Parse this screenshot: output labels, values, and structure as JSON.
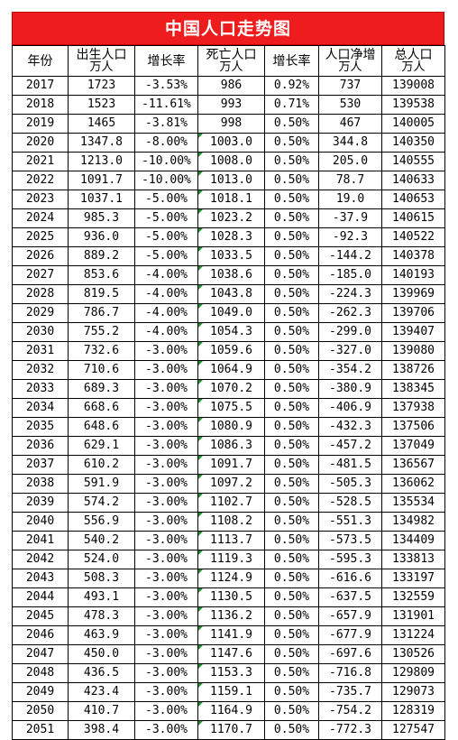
{
  "title": "中国人口走势图",
  "columns": [
    {
      "key": "year",
      "line1": "年份",
      "line2": ""
    },
    {
      "key": "births",
      "line1": "出生人口",
      "line2": "万人"
    },
    {
      "key": "birth_rate",
      "line1": "增长率",
      "line2": ""
    },
    {
      "key": "deaths",
      "line1": "死亡人口",
      "line2": "万人"
    },
    {
      "key": "death_rate",
      "line1": "增长率",
      "line2": ""
    },
    {
      "key": "net",
      "line1": "人口净增",
      "line2": "万人"
    },
    {
      "key": "total",
      "line1": "总人口",
      "line2": "万人"
    }
  ],
  "rows": [
    [
      "2017",
      "1723",
      "-3.53%",
      "986",
      "0.92%",
      "737",
      "139008"
    ],
    [
      "2018",
      "1523",
      "-11.61%",
      "993",
      "0.71%",
      "530",
      "139538"
    ],
    [
      "2019",
      "1465",
      "-3.81%",
      "998",
      "0.50%",
      "467",
      "140005"
    ],
    [
      "2020",
      "1347.8",
      "-8.00%",
      "1003.0",
      "0.50%",
      "344.8",
      "140350"
    ],
    [
      "2021",
      "1213.0",
      "-10.00%",
      "1008.0",
      "0.50%",
      "205.0",
      "140555"
    ],
    [
      "2022",
      "1091.7",
      "-10.00%",
      "1013.0",
      "0.50%",
      "78.7",
      "140633"
    ],
    [
      "2023",
      "1037.1",
      "-5.00%",
      "1018.1",
      "0.50%",
      "19.0",
      "140653"
    ],
    [
      "2024",
      "985.3",
      "-5.00%",
      "1023.2",
      "0.50%",
      "-37.9",
      "140615"
    ],
    [
      "2025",
      "936.0",
      "-5.00%",
      "1028.3",
      "0.50%",
      "-92.3",
      "140522"
    ],
    [
      "2026",
      "889.2",
      "-5.00%",
      "1033.5",
      "0.50%",
      "-144.2",
      "140378"
    ],
    [
      "2027",
      "853.6",
      "-4.00%",
      "1038.6",
      "0.50%",
      "-185.0",
      "140193"
    ],
    [
      "2028",
      "819.5",
      "-4.00%",
      "1043.8",
      "0.50%",
      "-224.3",
      "139969"
    ],
    [
      "2029",
      "786.7",
      "-4.00%",
      "1049.0",
      "0.50%",
      "-262.3",
      "139706"
    ],
    [
      "2030",
      "755.2",
      "-4.00%",
      "1054.3",
      "0.50%",
      "-299.0",
      "139407"
    ],
    [
      "2031",
      "732.6",
      "-3.00%",
      "1059.6",
      "0.50%",
      "-327.0",
      "139080"
    ],
    [
      "2032",
      "710.6",
      "-3.00%",
      "1064.9",
      "0.50%",
      "-354.2",
      "138726"
    ],
    [
      "2033",
      "689.3",
      "-3.00%",
      "1070.2",
      "0.50%",
      "-380.9",
      "138345"
    ],
    [
      "2034",
      "668.6",
      "-3.00%",
      "1075.5",
      "0.50%",
      "-406.9",
      "137938"
    ],
    [
      "2035",
      "648.6",
      "-3.00%",
      "1080.9",
      "0.50%",
      "-432.3",
      "137506"
    ],
    [
      "2036",
      "629.1",
      "-3.00%",
      "1086.3",
      "0.50%",
      "-457.2",
      "137049"
    ],
    [
      "2037",
      "610.2",
      "-3.00%",
      "1091.7",
      "0.50%",
      "-481.5",
      "136567"
    ],
    [
      "2038",
      "591.9",
      "-3.00%",
      "1097.2",
      "0.50%",
      "-505.3",
      "136062"
    ],
    [
      "2039",
      "574.2",
      "-3.00%",
      "1102.7",
      "0.50%",
      "-528.5",
      "135534"
    ],
    [
      "2040",
      "556.9",
      "-3.00%",
      "1108.2",
      "0.50%",
      "-551.3",
      "134982"
    ],
    [
      "2041",
      "540.2",
      "-3.00%",
      "1113.7",
      "0.50%",
      "-573.5",
      "134409"
    ],
    [
      "2042",
      "524.0",
      "-3.00%",
      "1119.3",
      "0.50%",
      "-595.3",
      "133813"
    ],
    [
      "2043",
      "508.3",
      "-3.00%",
      "1124.9",
      "0.50%",
      "-616.6",
      "133197"
    ],
    [
      "2044",
      "493.1",
      "-3.00%",
      "1130.5",
      "0.50%",
      "-637.5",
      "132559"
    ],
    [
      "2045",
      "478.3",
      "-3.00%",
      "1136.2",
      "0.50%",
      "-657.9",
      "131901"
    ],
    [
      "2046",
      "463.9",
      "-3.00%",
      "1141.9",
      "0.50%",
      "-677.9",
      "131224"
    ],
    [
      "2047",
      "450.0",
      "-3.00%",
      "1147.6",
      "0.50%",
      "-697.6",
      "130526"
    ],
    [
      "2048",
      "436.5",
      "-3.00%",
      "1153.3",
      "0.50%",
      "-716.8",
      "129809"
    ],
    [
      "2049",
      "423.4",
      "-3.00%",
      "1159.1",
      "0.50%",
      "-735.7",
      "129073"
    ],
    [
      "2050",
      "410.7",
      "-3.00%",
      "1164.9",
      "0.50%",
      "-754.2",
      "128319"
    ],
    [
      "2051",
      "398.4",
      "-3.00%",
      "1170.7",
      "0.50%",
      "-772.3",
      "127547"
    ]
  ],
  "colors": {
    "title_bg": "#ee1c1c",
    "title_text": "#ffffff",
    "cell_marker": "#1a8f2a"
  }
}
